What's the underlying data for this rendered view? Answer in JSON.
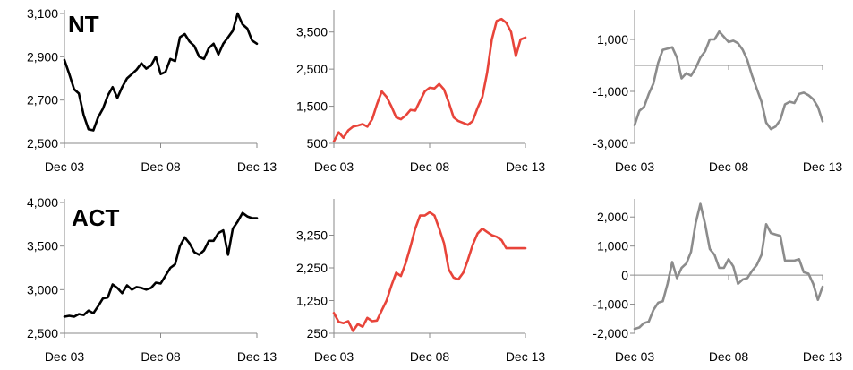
{
  "row_labels": [
    "NT",
    "ACT"
  ],
  "colors": {
    "black": "#000000",
    "red": "#e8443a",
    "grey": "#8c8c8c"
  },
  "chart_data": [
    {
      "type": "line",
      "row_label": "NT",
      "color": "black",
      "ylim": [
        2500,
        3100
      ],
      "yticks": [
        2500,
        2700,
        2900,
        3100
      ],
      "ytick_labels": [
        "2,500",
        "2,700",
        "2,900",
        "3,100"
      ],
      "xlim": [
        2003.75,
        2013.75
      ],
      "xticks": [
        2003.75,
        2008.75,
        2013.75
      ],
      "xtick_labels": [
        "Dec 03",
        "Dec 08",
        "Dec 13"
      ],
      "zero_line": false,
      "y_axis_side": "left",
      "x": [
        2003.75,
        2004,
        2004.25,
        2004.5,
        2004.75,
        2005,
        2005.25,
        2005.5,
        2005.75,
        2006,
        2006.25,
        2006.5,
        2006.75,
        2007,
        2007.25,
        2007.5,
        2007.75,
        2008,
        2008.25,
        2008.5,
        2008.75,
        2009,
        2009.25,
        2009.5,
        2009.75,
        2010,
        2010.25,
        2010.5,
        2010.75,
        2011,
        2011.25,
        2011.5,
        2011.75,
        2012,
        2012.25,
        2012.5,
        2012.75,
        2013,
        2013.25,
        2013.5,
        2013.75
      ],
      "y": [
        2885,
        2820,
        2750,
        2730,
        2630,
        2565,
        2560,
        2620,
        2660,
        2720,
        2760,
        2710,
        2760,
        2800,
        2820,
        2840,
        2870,
        2845,
        2860,
        2900,
        2820,
        2830,
        2890,
        2880,
        2990,
        3005,
        2970,
        2950,
        2900,
        2890,
        2940,
        2960,
        2910,
        2960,
        2990,
        3020,
        3100,
        3050,
        3030,
        2975,
        2960
      ]
    },
    {
      "type": "line",
      "row_label": "",
      "color": "red",
      "ylim": [
        500,
        4000
      ],
      "yticks": [
        500,
        1500,
        2500,
        3500
      ],
      "ytick_labels": [
        "500",
        "1,500",
        "2,500",
        "3,500"
      ],
      "xlim": [
        2003.75,
        2013.75
      ],
      "xticks": [
        2003.75,
        2008.75,
        2013.75
      ],
      "xtick_labels": [
        "Dec 03",
        "Dec 08",
        "Dec 13"
      ],
      "zero_line": false,
      "y_axis_side": "left",
      "x": [
        2003.75,
        2004,
        2004.25,
        2004.5,
        2004.75,
        2005,
        2005.25,
        2005.5,
        2005.75,
        2006,
        2006.25,
        2006.5,
        2006.75,
        2007,
        2007.25,
        2007.5,
        2007.75,
        2008,
        2008.25,
        2008.5,
        2008.75,
        2009,
        2009.25,
        2009.5,
        2009.75,
        2010,
        2010.25,
        2010.5,
        2010.75,
        2011,
        2011.25,
        2011.5,
        2011.75,
        2012,
        2012.25,
        2012.5,
        2012.75,
        2013,
        2013.25,
        2013.5,
        2013.75
      ],
      "y": [
        550,
        800,
        650,
        850,
        950,
        980,
        1020,
        950,
        1150,
        1550,
        1900,
        1750,
        1500,
        1200,
        1150,
        1250,
        1400,
        1380,
        1650,
        1900,
        2000,
        1980,
        2100,
        1950,
        1600,
        1200,
        1100,
        1050,
        1000,
        1100,
        1450,
        1750,
        2400,
        3300,
        3800,
        3850,
        3750,
        3500,
        2850,
        3300,
        3350
      ]
    },
    {
      "type": "line",
      "row_label": "",
      "color": "grey",
      "ylim": [
        -3000,
        2000
      ],
      "yticks": [
        -3000,
        -1000,
        1000
      ],
      "ytick_labels": [
        "-3,000",
        "-1,000",
        "1,000"
      ],
      "xlim": [
        2003.75,
        2013.75
      ],
      "xticks": [
        2003.75,
        2008.75,
        2013.75
      ],
      "xtick_labels": [
        "Dec 03",
        "Dec 08",
        "Dec 13"
      ],
      "zero_line": true,
      "y_axis_side": "left",
      "x": [
        2003.75,
        2004,
        2004.25,
        2004.5,
        2004.75,
        2005,
        2005.25,
        2005.5,
        2005.75,
        2006,
        2006.25,
        2006.5,
        2006.75,
        2007,
        2007.25,
        2007.5,
        2007.75,
        2008,
        2008.25,
        2008.5,
        2008.75,
        2009,
        2009.25,
        2009.5,
        2009.75,
        2010,
        2010.25,
        2010.5,
        2010.75,
        2011,
        2011.25,
        2011.5,
        2011.75,
        2012,
        2012.25,
        2012.5,
        2012.75,
        2013,
        2013.25,
        2013.5,
        2013.75
      ],
      "y": [
        -2300,
        -1750,
        -1600,
        -1100,
        -700,
        100,
        600,
        650,
        700,
        300,
        -500,
        -300,
        -400,
        -100,
        300,
        550,
        1000,
        1000,
        1300,
        1100,
        900,
        950,
        850,
        600,
        200,
        -400,
        -900,
        -1400,
        -2200,
        -2450,
        -2350,
        -2100,
        -1500,
        -1400,
        -1450,
        -1100,
        -1050,
        -1150,
        -1300,
        -1600,
        -2150
      ]
    },
    {
      "type": "line",
      "row_label": "ACT",
      "color": "black",
      "ylim": [
        2500,
        4000
      ],
      "yticks": [
        2500,
        3000,
        3500,
        4000
      ],
      "ytick_labels": [
        "2,500",
        "3,000",
        "3,500",
        "4,000"
      ],
      "xlim": [
        2003.75,
        2013.75
      ],
      "xticks": [
        2003.75,
        2008.75,
        2013.75
      ],
      "xtick_labels": [
        "Dec 03",
        "Dec 08",
        "Dec 13"
      ],
      "zero_line": false,
      "y_axis_side": "left",
      "x": [
        2003.75,
        2004,
        2004.25,
        2004.5,
        2004.75,
        2005,
        2005.25,
        2005.5,
        2005.75,
        2006,
        2006.25,
        2006.5,
        2006.75,
        2007,
        2007.25,
        2007.5,
        2007.75,
        2008,
        2008.25,
        2008.5,
        2008.75,
        2009,
        2009.25,
        2009.5,
        2009.75,
        2010,
        2010.25,
        2010.5,
        2010.75,
        2011,
        2011.25,
        2011.5,
        2011.75,
        2012,
        2012.25,
        2012.5,
        2012.75,
        2013,
        2013.25,
        2013.5,
        2013.75
      ],
      "y": [
        2690,
        2700,
        2690,
        2720,
        2710,
        2760,
        2730,
        2810,
        2900,
        2910,
        3060,
        3020,
        2960,
        3050,
        3000,
        3030,
        3020,
        3000,
        3020,
        3080,
        3070,
        3160,
        3250,
        3290,
        3500,
        3600,
        3530,
        3430,
        3400,
        3450,
        3560,
        3560,
        3650,
        3680,
        3400,
        3700,
        3780,
        3880,
        3840,
        3820,
        3820
      ]
    },
    {
      "type": "line",
      "row_label": "",
      "color": "red",
      "ylim": [
        250,
        4250
      ],
      "yticks": [
        250,
        1250,
        2250,
        3250
      ],
      "ytick_labels": [
        "250",
        "1,250",
        "2,250",
        "3,250"
      ],
      "xlim": [
        2003.75,
        2013.75
      ],
      "xticks": [
        2003.75,
        2008.75,
        2013.75
      ],
      "xtick_labels": [
        "Dec 03",
        "Dec 08",
        "Dec 13"
      ],
      "zero_line": false,
      "y_axis_side": "left",
      "x": [
        2003.75,
        2004,
        2004.25,
        2004.5,
        2004.75,
        2005,
        2005.25,
        2005.5,
        2005.75,
        2006,
        2006.25,
        2006.5,
        2006.75,
        2007,
        2007.25,
        2007.5,
        2007.75,
        2008,
        2008.25,
        2008.5,
        2008.75,
        2009,
        2009.25,
        2009.5,
        2009.75,
        2010,
        2010.25,
        2010.5,
        2010.75,
        2011,
        2011.25,
        2011.5,
        2011.75,
        2012,
        2012.25,
        2012.5,
        2012.75,
        2013,
        2013.25,
        2013.5,
        2013.75
      ],
      "y": [
        870,
        600,
        560,
        620,
        320,
        530,
        450,
        720,
        620,
        640,
        950,
        1250,
        1700,
        2100,
        2000,
        2400,
        2900,
        3450,
        3850,
        3850,
        3950,
        3850,
        3450,
        3000,
        2200,
        1950,
        1900,
        2100,
        2500,
        2950,
        3300,
        3450,
        3350,
        3250,
        3200,
        3100,
        2850,
        2850,
        2850,
        2850,
        2850
      ]
    },
    {
      "type": "line",
      "row_label": "",
      "color": "grey",
      "ylim": [
        -2000,
        2500
      ],
      "yticks": [
        -2000,
        -1000,
        0,
        1000,
        2000
      ],
      "ytick_labels": [
        "-2,000",
        "-1,000",
        "0",
        "1,000",
        "2,000"
      ],
      "xlim": [
        2003.75,
        2013.75
      ],
      "xticks": [
        2003.75,
        2008.75,
        2013.75
      ],
      "xtick_labels": [
        "Dec 03",
        "Dec 08",
        "Dec 13"
      ],
      "zero_line": true,
      "y_axis_side": "left",
      "x": [
        2003.75,
        2004,
        2004.25,
        2004.5,
        2004.75,
        2005,
        2005.25,
        2005.5,
        2005.75,
        2006,
        2006.25,
        2006.5,
        2006.75,
        2007,
        2007.25,
        2007.5,
        2007.75,
        2008,
        2008.25,
        2008.5,
        2008.75,
        2009,
        2009.25,
        2009.5,
        2009.75,
        2010,
        2010.25,
        2010.5,
        2010.75,
        2011,
        2011.25,
        2011.5,
        2011.75,
        2012,
        2012.25,
        2012.5,
        2012.75,
        2013,
        2013.25,
        2013.5,
        2013.75
      ],
      "y": [
        -1850,
        -1800,
        -1650,
        -1600,
        -1200,
        -950,
        -900,
        -300,
        450,
        -100,
        250,
        400,
        800,
        1800,
        2450,
        1750,
        900,
        700,
        250,
        250,
        550,
        300,
        -300,
        -150,
        -100,
        150,
        350,
        700,
        1750,
        1450,
        1400,
        1350,
        500,
        500,
        500,
        550,
        100,
        50,
        -300,
        -850,
        -400
      ]
    }
  ]
}
